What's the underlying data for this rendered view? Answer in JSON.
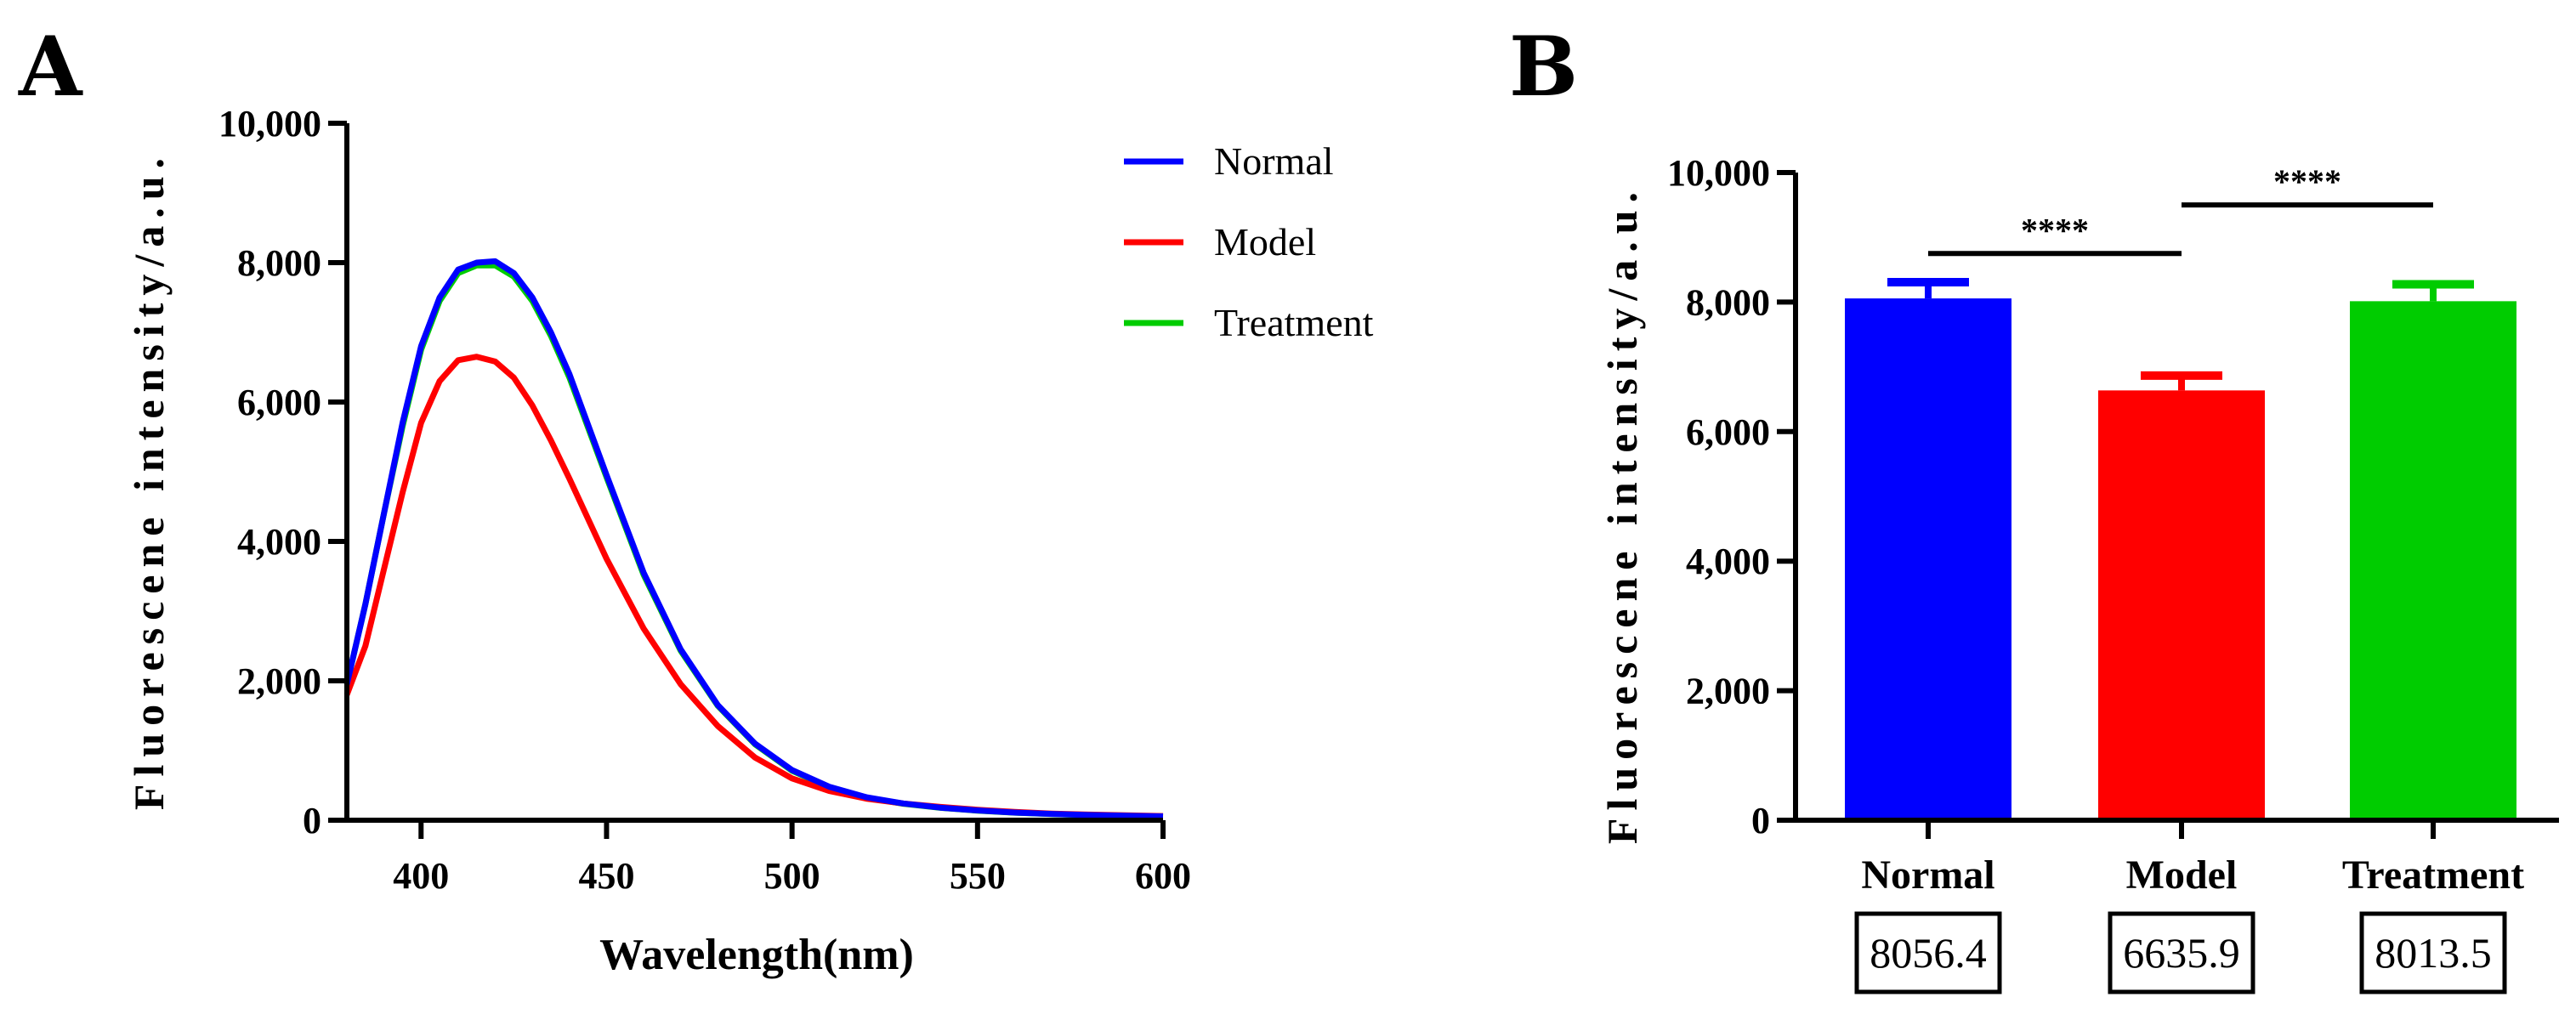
{
  "colors": {
    "normal": "#0000ff",
    "model": "#ff0000",
    "treatment": "#00cc00",
    "axis": "#000000"
  },
  "chart_data": [
    {
      "panel": "A",
      "type": "line",
      "title": "",
      "xlabel": "Wavelength(nm)",
      "ylabel": "Fluorescene intensity/a.u.",
      "xlim": [
        380,
        600
      ],
      "ylim": [
        0,
        10000
      ],
      "xticks": [
        400,
        450,
        500,
        550,
        600
      ],
      "xtick_labels": [
        "400",
        "450",
        "500",
        "550",
        "600"
      ],
      "yticks": [
        0,
        2000,
        4000,
        6000,
        8000,
        10000
      ],
      "ytick_labels": [
        "0",
        "2,000",
        "4,000",
        "6,000",
        "8,000",
        "10,000"
      ],
      "legend_position": "top-right",
      "x": [
        380,
        385,
        390,
        395,
        400,
        405,
        410,
        415,
        420,
        425,
        430,
        435,
        440,
        450,
        460,
        470,
        480,
        490,
        500,
        510,
        520,
        530,
        540,
        550,
        560,
        570,
        580,
        590,
        600
      ],
      "series": [
        {
          "name": "Normal",
          "color": "#0000ff",
          "values": [
            1950,
            3100,
            4400,
            5700,
            6800,
            7500,
            7900,
            8000,
            8020,
            7850,
            7500,
            7000,
            6400,
            4950,
            3550,
            2450,
            1650,
            1100,
            720,
            480,
            330,
            240,
            180,
            140,
            110,
            90,
            75,
            65,
            55
          ]
        },
        {
          "name": "Model",
          "color": "#ff0000",
          "values": [
            1800,
            2500,
            3600,
            4700,
            5700,
            6300,
            6600,
            6650,
            6580,
            6350,
            5950,
            5450,
            4900,
            3750,
            2750,
            1950,
            1350,
            900,
            600,
            420,
            310,
            240,
            190,
            150,
            120,
            95,
            80,
            70,
            60
          ]
        },
        {
          "name": "Treatment",
          "color": "#00cc00",
          "values": [
            1950,
            3100,
            4400,
            5650,
            6750,
            7450,
            7850,
            7960,
            7960,
            7800,
            7450,
            6950,
            6350,
            4920,
            3520,
            2430,
            1640,
            1090,
            710,
            475,
            325,
            235,
            178,
            138,
            108,
            88,
            73,
            63,
            53
          ]
        }
      ]
    },
    {
      "panel": "B",
      "type": "bar",
      "title": "",
      "xlabel": "",
      "ylabel": "Fluorescene intensity/a.u.",
      "ylim": [
        0,
        10000
      ],
      "yticks": [
        0,
        2000,
        4000,
        6000,
        8000,
        10000
      ],
      "ytick_labels": [
        "0",
        "2,000",
        "4,000",
        "6,000",
        "8,000",
        "10,000"
      ],
      "categories": [
        "Normal",
        "Model",
        "Treatment"
      ],
      "values": [
        8056.4,
        6635.9,
        8013.5
      ],
      "value_labels": [
        "8056.4",
        "6635.9",
        "8013.5"
      ],
      "errors": [
        250,
        230,
        260
      ],
      "bar_colors": [
        "#0000ff",
        "#ff0000",
        "#00cc00"
      ],
      "significance": [
        {
          "from": 0,
          "to": 1,
          "label": "****",
          "level": 8750
        },
        {
          "from": 1,
          "to": 2,
          "label": "****",
          "level": 9500
        }
      ]
    }
  ]
}
